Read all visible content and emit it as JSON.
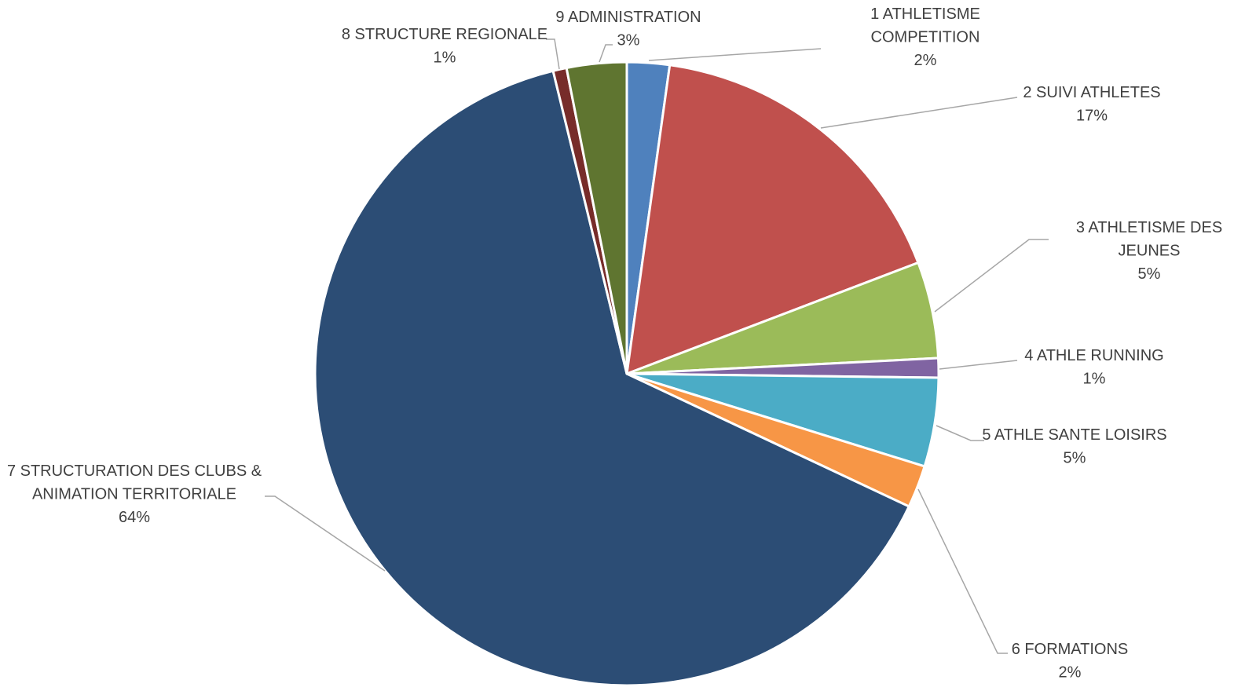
{
  "chart_data": {
    "type": "pie",
    "title": "",
    "slices": [
      {
        "label": "1 ATHLETISME COMPETITION",
        "label_lines": [
          "1 ATHLETISME",
          "COMPETITION"
        ],
        "value": 2.2,
        "percent_label": "2%",
        "color": "#4F81BD"
      },
      {
        "label": "2 SUIVI ATHLETES",
        "label_lines": [
          "2 SUIVI ATHLETES"
        ],
        "value": 17.0,
        "percent_label": "17%",
        "color": "#C0504D"
      },
      {
        "label": "3 ATHLETISME DES JEUNES",
        "label_lines": [
          "3 ATHLETISME DES",
          "JEUNES"
        ],
        "value": 5.0,
        "percent_label": "5%",
        "color": "#9BBB59"
      },
      {
        "label": "4 ATHLE RUNNING",
        "label_lines": [
          "4 ATHLE RUNNING"
        ],
        "value": 1.0,
        "percent_label": "1%",
        "color": "#8064A2"
      },
      {
        "label": "5 ATHLE SANTE LOISIRS",
        "label_lines": [
          "5 ATHLE SANTE LOISIRS"
        ],
        "value": 4.6,
        "percent_label": "5%",
        "color": "#4BACC6"
      },
      {
        "label": "6 FORMATIONS",
        "label_lines": [
          "6 FORMATIONS"
        ],
        "value": 2.2,
        "percent_label": "2%",
        "color": "#F79646"
      },
      {
        "label": "7 STRUCTURATION DES CLUBS & ANIMATION TERRITORIALE",
        "label_lines": [
          "7  STRUCTURATION DES CLUBS &",
          "ANIMATION TERRITORIALE"
        ],
        "value": 64.2,
        "percent_label": "64%",
        "color": "#2C4D75"
      },
      {
        "label": "8 STRUCTURE REGIONALE",
        "label_lines": [
          "8 STRUCTURE REGIONALE"
        ],
        "value": 0.7,
        "percent_label": "1%",
        "color": "#772C2A"
      },
      {
        "label": "9 ADMINISTRATION",
        "label_lines": [
          "9 ADMINISTRATION"
        ],
        "value": 3.1,
        "percent_label": "3%",
        "color": "#5F7530"
      }
    ],
    "legend": "none",
    "data_labels": "outside-with-leader-lines"
  }
}
